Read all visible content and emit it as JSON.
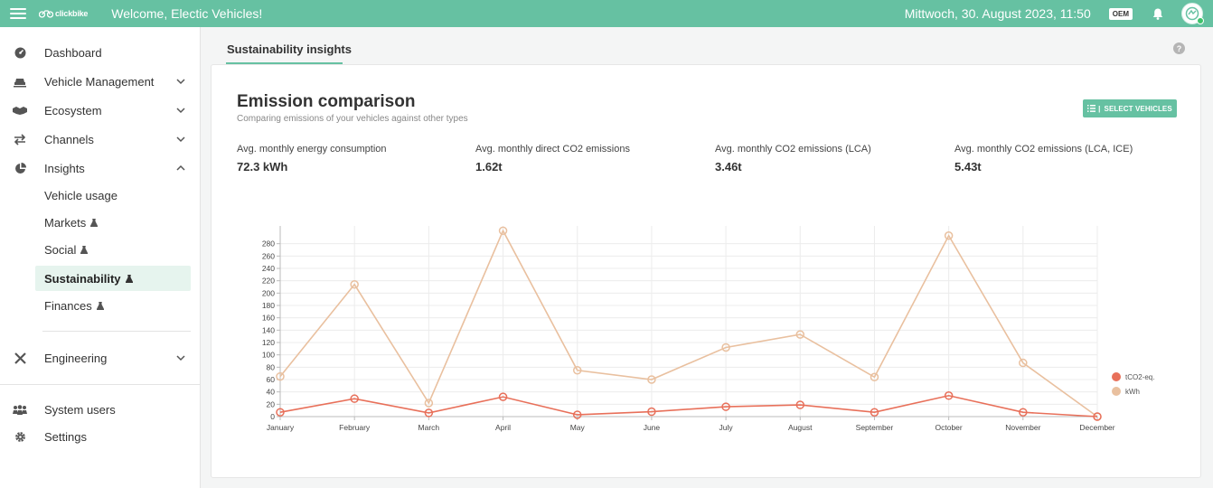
{
  "topbar": {
    "logo_text": "clickbike",
    "welcome": "Welcome, Electic Vehicles!",
    "datetime": "Mittwoch, 30. August 2023, 11:50",
    "oem_badge": "OEM"
  },
  "sidebar": {
    "dashboard": "Dashboard",
    "vehicle_management": "Vehicle Management",
    "ecosystem": "Ecosystem",
    "channels": "Channels",
    "insights": "Insights",
    "vehicle_usage": "Vehicle usage",
    "markets": "Markets",
    "social": "Social",
    "sustainability": "Sustainability",
    "finances": "Finances",
    "engineering": "Engineering",
    "system_users": "System users",
    "settings": "Settings"
  },
  "tabs": {
    "sustainability": "Sustainability insights",
    "help": "?"
  },
  "card": {
    "title": "Emission comparison",
    "subtitle": "Comparing emissions of your vehicles against other types",
    "select_button": "SELECT VEHICLES",
    "stats": [
      {
        "label": "Avg. monthly energy consumption",
        "value": "72.3 kWh"
      },
      {
        "label": "Avg. monthly direct CO2 emissions",
        "value": "1.62t"
      },
      {
        "label": "Avg. monthly CO2 emissions (LCA)",
        "value": "3.46t"
      },
      {
        "label": "Avg. monthly CO2 emissions (LCA, ICE)",
        "value": "5.43t"
      }
    ]
  },
  "colors": {
    "accent": "#66c1a2",
    "series_co2": "#e8705a",
    "series_kwh": "#e9c09f"
  },
  "chart_data": {
    "type": "line",
    "categories": [
      "January",
      "February",
      "March",
      "April",
      "May",
      "June",
      "July",
      "August",
      "September",
      "October",
      "November",
      "December"
    ],
    "series": [
      {
        "name": "tCO2-eq.",
        "values": [
          7,
          29,
          6,
          32,
          3,
          8,
          16,
          19,
          7,
          34,
          7,
          0
        ]
      },
      {
        "name": "kWh",
        "values": [
          65,
          214,
          22,
          301,
          75,
          60,
          112,
          133,
          64,
          293,
          87,
          0
        ]
      }
    ],
    "yticks": [
      0,
      20,
      40,
      60,
      80,
      100,
      120,
      140,
      160,
      180,
      200,
      220,
      240,
      260,
      280
    ],
    "ylim": [
      0,
      300
    ],
    "grid": true,
    "legend": "right"
  }
}
